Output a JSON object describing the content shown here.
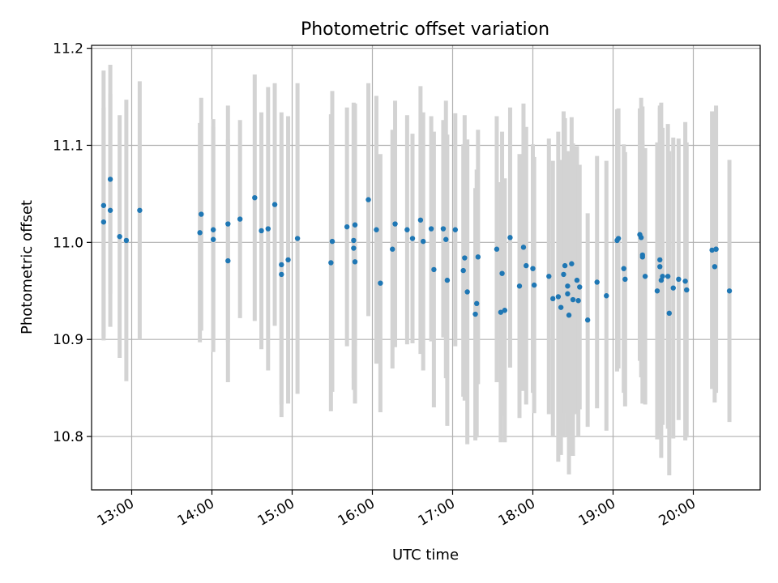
{
  "chart_data": {
    "type": "scatter",
    "title": "Photometric offset variation",
    "xlabel": "UTC time",
    "ylabel": "Photometric offset",
    "xlim": [
      "12:30",
      "20:50"
    ],
    "ylim": [
      10.745,
      11.203
    ],
    "grid": true,
    "x_ticks": [
      "13:00",
      "14:00",
      "15:00",
      "16:00",
      "17:00",
      "18:00",
      "19:00",
      "20:00"
    ],
    "y_ticks": [
      "10.8",
      "10.9",
      "11.0",
      "11.1",
      "11.2"
    ],
    "colors": {
      "point": "#1f77b4",
      "errorbar": "#d3d3d3",
      "grid": "#b0b0b0"
    },
    "series": [
      {
        "x": [
          "12:39",
          "12:39",
          "12:44",
          "12:44",
          "12:51",
          "12:56",
          "13:06",
          "13:51",
          "13:52",
          "14:01",
          "14:01",
          "14:12",
          "14:12",
          "14:21",
          "14:32",
          "14:37",
          "14:42",
          "14:47",
          "14:52",
          "14:52",
          "14:57",
          "15:04",
          "15:29",
          "15:30",
          "15:41",
          "15:46",
          "15:46",
          "15:47",
          "15:47",
          "15:57",
          "16:03",
          "16:06",
          "16:15",
          "16:17",
          "16:26",
          "16:30",
          "16:36",
          "16:38",
          "16:44",
          "16:46",
          "16:53",
          "16:55",
          "16:56",
          "17:02",
          "17:08",
          "17:09",
          "17:11",
          "17:17",
          "17:18",
          "17:19",
          "17:33",
          "17:36",
          "17:37",
          "17:39",
          "17:43",
          "17:50",
          "17:53",
          "17:55",
          "18:00",
          "18:01",
          "18:12",
          "18:15",
          "18:19",
          "18:21",
          "18:23",
          "18:24",
          "18:26",
          "18:26",
          "18:27",
          "18:29",
          "18:30",
          "18:33",
          "18:34",
          "18:35",
          "18:41",
          "18:48",
          "18:55",
          "19:03",
          "19:04",
          "19:08",
          "19:09",
          "19:20",
          "19:21",
          "19:22",
          "19:22",
          "19:24",
          "19:33",
          "19:35",
          "19:35",
          "19:36",
          "19:37",
          "19:41",
          "19:42",
          "19:45",
          "19:49",
          "19:54",
          "19:55",
          "20:14",
          "20:16",
          "20:17",
          "20:17",
          "20:27"
        ],
        "y": [
          11.038,
          11.021,
          11.065,
          11.033,
          11.006,
          11.002,
          11.033,
          11.01,
          11.029,
          11.013,
          11.003,
          10.981,
          11.019,
          11.024,
          11.046,
          11.012,
          11.014,
          11.039,
          10.977,
          10.967,
          10.982,
          11.004,
          10.979,
          11.001,
          11.016,
          11.002,
          10.994,
          11.018,
          10.98,
          11.044,
          11.013,
          10.958,
          10.993,
          11.019,
          11.013,
          11.004,
          11.023,
          11.001,
          11.014,
          10.972,
          11.014,
          11.003,
          10.961,
          11.013,
          10.971,
          10.984,
          10.949,
          10.926,
          10.937,
          10.985,
          10.993,
          10.928,
          10.968,
          10.93,
          11.005,
          10.955,
          10.995,
          10.976,
          10.973,
          10.956,
          10.965,
          10.942,
          10.944,
          10.933,
          10.967,
          10.976,
          10.955,
          10.947,
          10.925,
          10.978,
          10.941,
          10.961,
          10.94,
          10.954,
          10.92,
          10.959,
          10.945,
          11.002,
          11.004,
          10.973,
          10.962,
          11.008,
          11.005,
          10.987,
          10.985,
          10.965,
          10.95,
          10.982,
          10.975,
          10.961,
          10.965,
          10.965,
          10.927,
          10.953,
          10.962,
          10.96,
          10.951,
          10.992,
          10.975,
          10.993,
          10.993,
          10.95
        ],
        "err": [
          0.139,
          0.118,
          0.118,
          0.12,
          0.125,
          0.145,
          0.133,
          0.113,
          0.12,
          0.114,
          0.116,
          0.125,
          0.122,
          0.102,
          0.127,
          0.122,
          0.146,
          0.125,
          0.157,
          0.134,
          0.148,
          0.16,
          0.153,
          0.155,
          0.123,
          0.142,
          0.146,
          0.125,
          0.146,
          0.12,
          0.138,
          0.133,
          0.123,
          0.127,
          0.118,
          0.108,
          0.138,
          0.133,
          0.116,
          0.142,
          0.112,
          0.143,
          0.15,
          0.12,
          0.13,
          0.147,
          0.157,
          0.13,
          0.138,
          0.131,
          0.137,
          0.134,
          0.146,
          0.136,
          0.134,
          0.136,
          0.148,
          0.143,
          0.128,
          0.132,
          0.142,
          0.142,
          0.17,
          0.152,
          0.168,
          0.152,
          0.138,
          0.147,
          0.164,
          0.151,
          0.161,
          0.138,
          0.14,
          0.126,
          0.11,
          0.13,
          0.139,
          0.135,
          0.134,
          0.128,
          0.131,
          0.13,
          0.144,
          0.153,
          0.12,
          0.132,
          0.153,
          0.157,
          0.166,
          0.183,
          0.153,
          0.157,
          0.167,
          0.155,
          0.145,
          0.164,
          0.152,
          0.143,
          0.14,
          0.148,
          0.146,
          0.135
        ]
      }
    ]
  }
}
